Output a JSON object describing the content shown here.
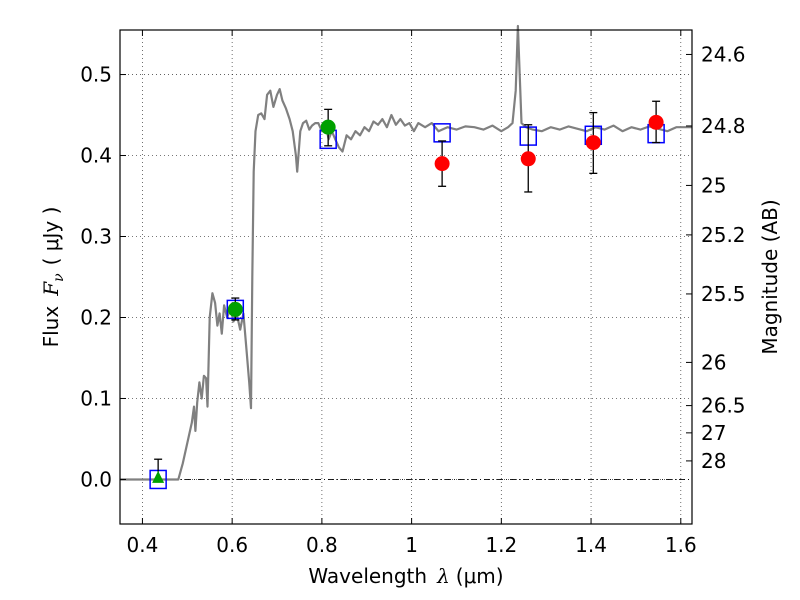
{
  "chart_data": {
    "type": "scatter",
    "xlabel_text": "Wavelength",
    "xlabel_symbol": "λ",
    "xlabel_unit": "(μm)",
    "ylabel_text": "Flux",
    "ylabel_symbol": "F",
    "ylabel_subscript": "ν",
    "ylabel_unit": "( μJy )",
    "y2label": "Magnitude (AB)",
    "xlim": [
      0.35,
      1.625
    ],
    "ylim": [
      -0.055,
      0.555
    ],
    "grid": true,
    "x_ticks": [
      0.4,
      0.6,
      0.8,
      1.0,
      1.2,
      1.4,
      1.6
    ],
    "x_tick_labels": [
      "0.4",
      "0.6",
      "0.8",
      "1",
      "1.2",
      "1.4",
      "1.6"
    ],
    "y_ticks": [
      0.0,
      0.1,
      0.2,
      0.3,
      0.4,
      0.5
    ],
    "y_tick_labels": [
      "0.0",
      "0.1",
      "0.2",
      "0.3",
      "0.4",
      "0.5"
    ],
    "mag_ticks": [
      24.6,
      24.8,
      25,
      25.2,
      25.5,
      26,
      26.5,
      27,
      28
    ],
    "mag_tick_labels": [
      "24.6",
      "24.8",
      "25",
      "25.2",
      "25.5",
      "26",
      "26.5",
      "27",
      "28"
    ],
    "colors": {
      "spectrum": "#808080",
      "model_box": "#0000ff",
      "green_point": "#00a000",
      "red_point": "#ff0000",
      "error_bar": "#000000",
      "zero_line": "#000000"
    },
    "series": [
      {
        "kind": "spectrum",
        "points": [
          [
            0.35,
            0.0
          ],
          [
            0.48,
            0.0
          ],
          [
            0.49,
            0.02
          ],
          [
            0.5,
            0.045
          ],
          [
            0.51,
            0.07
          ],
          [
            0.515,
            0.09
          ],
          [
            0.518,
            0.06
          ],
          [
            0.522,
            0.095
          ],
          [
            0.527,
            0.12
          ],
          [
            0.532,
            0.1
          ],
          [
            0.537,
            0.128
          ],
          [
            0.542,
            0.125
          ],
          [
            0.545,
            0.09
          ],
          [
            0.55,
            0.2
          ],
          [
            0.556,
            0.23
          ],
          [
            0.562,
            0.218
          ],
          [
            0.567,
            0.19
          ],
          [
            0.572,
            0.205
          ],
          [
            0.577,
            0.18
          ],
          [
            0.582,
            0.215
          ],
          [
            0.589,
            0.2
          ],
          [
            0.596,
            0.212
          ],
          [
            0.603,
            0.195
          ],
          [
            0.61,
            0.205
          ],
          [
            0.618,
            0.185
          ],
          [
            0.625,
            0.205
          ],
          [
            0.632,
            0.16
          ],
          [
            0.638,
            0.12
          ],
          [
            0.642,
            0.088
          ],
          [
            0.645,
            0.25
          ],
          [
            0.648,
            0.38
          ],
          [
            0.652,
            0.43
          ],
          [
            0.658,
            0.45
          ],
          [
            0.665,
            0.452
          ],
          [
            0.672,
            0.445
          ],
          [
            0.678,
            0.475
          ],
          [
            0.685,
            0.48
          ],
          [
            0.692,
            0.46
          ],
          [
            0.7,
            0.475
          ],
          [
            0.706,
            0.482
          ],
          [
            0.712,
            0.468
          ],
          [
            0.72,
            0.458
          ],
          [
            0.728,
            0.445
          ],
          [
            0.735,
            0.43
          ],
          [
            0.742,
            0.4
          ],
          [
            0.745,
            0.38
          ],
          [
            0.752,
            0.43
          ],
          [
            0.758,
            0.44
          ],
          [
            0.765,
            0.443
          ],
          [
            0.772,
            0.432
          ],
          [
            0.778,
            0.437
          ],
          [
            0.785,
            0.44
          ],
          [
            0.792,
            0.44
          ],
          [
            0.8,
            0.43
          ],
          [
            0.808,
            0.44
          ],
          [
            0.815,
            0.42
          ],
          [
            0.822,
            0.43
          ],
          [
            0.83,
            0.42
          ],
          [
            0.838,
            0.41
          ],
          [
            0.846,
            0.405
          ],
          [
            0.855,
            0.425
          ],
          [
            0.865,
            0.42
          ],
          [
            0.875,
            0.43
          ],
          [
            0.885,
            0.425
          ],
          [
            0.895,
            0.435
          ],
          [
            0.905,
            0.43
          ],
          [
            0.915,
            0.442
          ],
          [
            0.925,
            0.438
          ],
          [
            0.935,
            0.445
          ],
          [
            0.945,
            0.435
          ],
          [
            0.955,
            0.45
          ],
          [
            0.965,
            0.438
          ],
          [
            0.975,
            0.445
          ],
          [
            0.985,
            0.437
          ],
          [
            0.995,
            0.44
          ],
          [
            1.005,
            0.43
          ],
          [
            1.015,
            0.44
          ],
          [
            1.03,
            0.435
          ],
          [
            1.045,
            0.44
          ],
          [
            1.06,
            0.43
          ],
          [
            1.08,
            0.435
          ],
          [
            1.1,
            0.432
          ],
          [
            1.12,
            0.436
          ],
          [
            1.14,
            0.435
          ],
          [
            1.16,
            0.432
          ],
          [
            1.18,
            0.437
          ],
          [
            1.2,
            0.43
          ],
          [
            1.215,
            0.435
          ],
          [
            1.225,
            0.44
          ],
          [
            1.232,
            0.48
          ],
          [
            1.237,
            0.56
          ],
          [
            1.241,
            0.5
          ],
          [
            1.245,
            0.44
          ],
          [
            1.255,
            0.435
          ],
          [
            1.27,
            0.432
          ],
          [
            1.29,
            0.43
          ],
          [
            1.31,
            0.435
          ],
          [
            1.33,
            0.432
          ],
          [
            1.35,
            0.436
          ],
          [
            1.37,
            0.433
          ],
          [
            1.39,
            0.43
          ],
          [
            1.41,
            0.435
          ],
          [
            1.43,
            0.432
          ],
          [
            1.45,
            0.437
          ],
          [
            1.47,
            0.43
          ],
          [
            1.49,
            0.435
          ],
          [
            1.51,
            0.432
          ],
          [
            1.53,
            0.436
          ],
          [
            1.55,
            0.433
          ],
          [
            1.57,
            0.43
          ],
          [
            1.59,
            0.435
          ],
          [
            1.625,
            0.435
          ]
        ]
      },
      {
        "kind": "model_boxes",
        "points": [
          [
            0.435,
            0.0
          ],
          [
            0.607,
            0.21
          ],
          [
            0.814,
            0.42
          ],
          [
            1.068,
            0.428
          ],
          [
            1.26,
            0.424
          ],
          [
            1.405,
            0.425
          ],
          [
            1.545,
            0.427
          ]
        ]
      },
      {
        "kind": "green_triangle",
        "points": [
          [
            0.435,
            0.002,
            0.0,
            0.025
          ]
        ]
      },
      {
        "kind": "green_circles",
        "points": [
          [
            0.607,
            0.21,
            0.197,
            0.224
          ],
          [
            0.814,
            0.435,
            0.412,
            0.457
          ]
        ]
      },
      {
        "kind": "red_circles",
        "points": [
          [
            1.068,
            0.39,
            0.362,
            0.418
          ],
          [
            1.26,
            0.396,
            0.355,
            0.438
          ],
          [
            1.405,
            0.416,
            0.378,
            0.453
          ],
          [
            1.545,
            0.441,
            0.416,
            0.467
          ]
        ]
      }
    ]
  }
}
